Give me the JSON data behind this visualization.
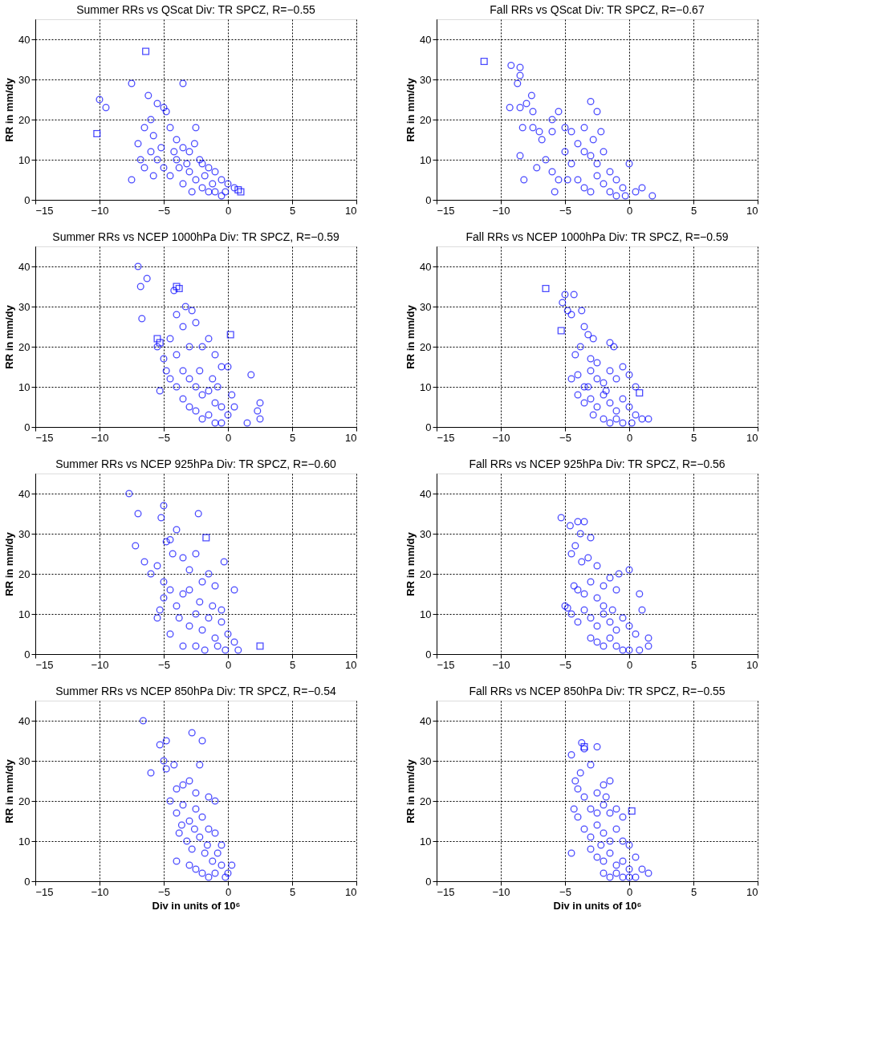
{
  "chart_data": [
    {
      "type": "scatter",
      "title": "Summer RRs vs QScat Div: TR SPCZ, R=−0.55",
      "ylabel": "RR in mm/dy",
      "xlim": [
        -15,
        10
      ],
      "xticks": [
        -15,
        -10,
        -5,
        0,
        5,
        10
      ],
      "ylim": [
        0,
        45
      ],
      "yticks": [
        0,
        10,
        20,
        30,
        40
      ],
      "grid": true,
      "series": [
        {
          "color": "#0000ff",
          "marker": "circle",
          "x": [
            -10,
            -9.5,
            -7.5,
            -3.5,
            -6.2,
            -5.5,
            -5,
            -4.8,
            -6,
            -7,
            -6.5,
            -5.8,
            -4.5,
            -4,
            -3.5,
            -3,
            -2.5,
            -2.2,
            -2,
            -1.5,
            -1,
            -0.5,
            0,
            0.5,
            -7.5,
            -5.5,
            -5,
            -4.5,
            -4,
            -3.5,
            -3,
            -2.8,
            -2.5,
            -2,
            -1.5,
            -0.5,
            -6,
            -6.8,
            -5.2,
            -4.2,
            -3.8,
            -3.2,
            -2.6,
            -1.8,
            -1.2,
            -1,
            -0.2,
            -5.8,
            -6.5
          ],
          "values": [
            25,
            23,
            29,
            29,
            26,
            24,
            23,
            22,
            20,
            14,
            18,
            16,
            18,
            15,
            13,
            12,
            18,
            10,
            9,
            8,
            7,
            5,
            4,
            3,
            5,
            10,
            8,
            6,
            10,
            4,
            7,
            2,
            5,
            3,
            2,
            1,
            12,
            10,
            13,
            12,
            8,
            9,
            14,
            6,
            4,
            2,
            2,
            6,
            8
          ]
        },
        {
          "color": "#0000ff",
          "marker": "square",
          "x": [
            -10.2,
            -6.4,
            1,
            0.8
          ],
          "values": [
            16.5,
            37,
            2,
            2.5
          ]
        }
      ]
    },
    {
      "type": "scatter",
      "title": "Fall RRs vs QScat Div: TR SPCZ, R=−0.67",
      "ylabel": "RR in mm/dy",
      "xlim": [
        -15,
        10
      ],
      "xticks": [
        -15,
        -10,
        -5,
        0,
        5,
        10
      ],
      "ylim": [
        0,
        45
      ],
      "yticks": [
        0,
        10,
        20,
        30,
        40
      ],
      "grid": true,
      "series": [
        {
          "color": "#0000ff",
          "marker": "circle",
          "x": [
            -9.2,
            -8.5,
            -8.5,
            -8.7,
            -9.3,
            -8.5,
            -7.6,
            -8,
            -7.5,
            -8.3,
            -7.5,
            -7,
            -6.8,
            -6,
            -6,
            -5.5,
            -5,
            -4.5,
            -3.5,
            -3,
            -2.5,
            -2.2,
            -8.5,
            -8.2,
            -7.2,
            -6.5,
            -6,
            -5.5,
            -5.8,
            -5,
            -4.5,
            -4,
            -3.5,
            -3,
            -2.5,
            -2,
            -1.5,
            -1,
            -0.5,
            0,
            0.5,
            1,
            1.8,
            -4,
            -3.5,
            -3,
            -2.5,
            -2,
            -1.5,
            -1,
            -0.3,
            -2.8,
            -4.8
          ],
          "values": [
            33.5,
            33,
            31,
            29,
            23,
            23,
            26,
            24,
            22,
            18,
            18,
            17,
            15,
            17,
            20,
            22,
            18,
            17,
            18,
            24.5,
            22,
            17,
            11,
            5,
            8,
            10,
            7,
            5,
            2,
            12,
            9,
            14,
            12,
            11,
            9,
            12,
            7,
            5,
            3,
            9,
            2,
            3,
            1,
            5,
            3,
            2,
            6,
            4,
            2,
            1,
            1,
            15,
            5
          ]
        },
        {
          "color": "#0000ff",
          "marker": "square",
          "x": [
            -11.3
          ],
          "values": [
            34.5
          ]
        }
      ]
    },
    {
      "type": "scatter",
      "title": "Summer RRs vs NCEP 1000hPa Div: TR SPCZ, R=−0.59",
      "ylabel": "RR in mm/dy",
      "xlim": [
        -15,
        10
      ],
      "xticks": [
        -15,
        -10,
        -5,
        0,
        5,
        10
      ],
      "ylim": [
        0,
        45
      ],
      "yticks": [
        0,
        10,
        20,
        30,
        40
      ],
      "grid": true,
      "series": [
        {
          "color": "#0000ff",
          "marker": "circle",
          "x": [
            -7,
            -6.8,
            -6.3,
            -6.7,
            -4.2,
            -3.3,
            -2.8,
            -4,
            -3.5,
            -2.5,
            -1.5,
            -4.5,
            -5.5,
            -5,
            -4,
            -3,
            -2,
            -1,
            -0.5,
            0,
            1.8,
            -5.3,
            -4.5,
            -4,
            -3.5,
            -3,
            -2.5,
            -2,
            -1.5,
            -1,
            -0.5,
            0,
            0.5,
            2.5,
            2.3,
            2.5,
            1.5,
            -3,
            -2.5,
            -2,
            -1.5,
            -1,
            -0.5,
            -3.5,
            -2.2,
            -1.2,
            -0.8,
            0.3,
            -4.8
          ],
          "values": [
            40,
            35,
            37,
            27,
            34,
            30,
            29,
            28,
            25,
            26,
            22,
            22,
            20,
            17,
            18,
            20,
            20,
            18,
            15,
            15,
            13,
            9,
            12,
            10,
            14,
            12,
            10,
            8,
            9,
            6,
            5,
            3,
            5,
            6,
            4,
            2,
            1,
            5,
            4,
            2,
            3,
            1,
            1,
            7,
            14,
            12,
            10,
            8,
            14
          ]
        },
        {
          "color": "#0000ff",
          "marker": "square",
          "x": [
            -4,
            -5.5,
            -5.3,
            0.2,
            -3.8
          ],
          "values": [
            35,
            22,
            21,
            23,
            34.5
          ]
        }
      ]
    },
    {
      "type": "scatter",
      "title": "Fall RRs vs NCEP 1000hPa Div: TR SPCZ, R=−0.59",
      "ylabel": "RR in mm/dy",
      "xlim": [
        -15,
        10
      ],
      "xticks": [
        -15,
        -10,
        -5,
        0,
        5,
        10
      ],
      "ylim": [
        0,
        45
      ],
      "yticks": [
        0,
        10,
        20,
        30,
        40
      ],
      "grid": true,
      "series": [
        {
          "color": "#0000ff",
          "marker": "circle",
          "x": [
            -5,
            -4.3,
            -5.2,
            -4.8,
            -4.5,
            -3.7,
            -3.5,
            -3.2,
            -2.8,
            -4.2,
            -3.8,
            -3,
            -2.5,
            -1.5,
            -1.2,
            -0.5,
            -4.5,
            -4,
            -3.5,
            -3,
            -2.5,
            -2,
            -1.5,
            -1,
            0,
            0.5,
            -4,
            -3.5,
            -3,
            -2.5,
            -2,
            -1.5,
            -1,
            -0.5,
            0,
            0.5,
            1,
            1.5,
            -2,
            -1.5,
            -1,
            -0.5,
            0.2,
            -2.8,
            -3.2,
            -1.8
          ],
          "values": [
            33,
            33,
            31,
            29,
            28,
            29,
            25,
            23,
            22,
            18,
            20,
            17,
            16,
            21,
            20,
            15,
            12,
            13,
            10,
            14,
            12,
            11,
            14,
            12,
            13,
            10,
            8,
            6,
            7,
            5,
            8,
            6,
            4,
            7,
            5,
            3,
            2,
            2,
            2,
            1,
            2,
            1,
            1,
            3,
            10,
            9
          ]
        },
        {
          "color": "#0000ff",
          "marker": "square",
          "x": [
            -6.5,
            -5.3,
            0.8
          ],
          "values": [
            34.5,
            24,
            8.5
          ]
        }
      ]
    },
    {
      "type": "scatter",
      "title": "Summer RRs vs NCEP 925hPa Div: TR SPCZ, R=−0.60",
      "ylabel": "RR in mm/dy",
      "xlim": [
        -15,
        10
      ],
      "xticks": [
        -15,
        -10,
        -5,
        0,
        5,
        10
      ],
      "ylim": [
        0,
        45
      ],
      "yticks": [
        0,
        10,
        20,
        30,
        40
      ],
      "grid": true,
      "series": [
        {
          "color": "#0000ff",
          "marker": "circle",
          "x": [
            -7.7,
            -7,
            -7.2,
            -5,
            -5.2,
            -2.3,
            -4,
            -4.8,
            -4.5,
            -6.5,
            -6,
            -5.5,
            -5,
            -4.3,
            -3.5,
            -2.5,
            -3,
            -0.3,
            -5.5,
            -5.3,
            -5,
            -4.5,
            -4,
            -3.5,
            -3,
            -2,
            -1.5,
            -1,
            0.5,
            -4.5,
            -3.5,
            -3,
            -2.5,
            -2,
            -1.5,
            -1,
            -0.5,
            0,
            0.5,
            0.8,
            -2.5,
            -1.8,
            -0.8,
            -0.2,
            -1.2,
            -0.5,
            -2.2,
            -3.8
          ],
          "values": [
            40,
            35,
            27,
            37,
            34,
            35,
            31,
            28,
            28.5,
            23,
            20,
            22,
            18,
            25,
            24,
            25,
            21,
            23,
            9,
            11,
            14,
            16,
            12,
            15,
            16,
            18,
            20,
            17,
            16,
            5,
            2,
            7,
            10,
            6,
            9,
            4,
            8,
            5,
            3,
            1,
            2,
            1,
            2,
            1,
            12,
            11,
            13,
            9
          ]
        },
        {
          "color": "#0000ff",
          "marker": "square",
          "x": [
            2.5,
            -1.7
          ],
          "values": [
            2,
            29
          ]
        }
      ]
    },
    {
      "type": "scatter",
      "title": "Fall RRs vs NCEP 925hPa Div: TR SPCZ, R=−0.56",
      "ylabel": "RR in mm/dy",
      "xlim": [
        -15,
        10
      ],
      "xticks": [
        -15,
        -10,
        -5,
        0,
        5,
        10
      ],
      "ylim": [
        0,
        45
      ],
      "yticks": [
        0,
        10,
        20,
        30,
        40
      ],
      "grid": true,
      "series": [
        {
          "color": "#0000ff",
          "marker": "circle",
          "x": [
            -5.3,
            -4.6,
            -4,
            -3.5,
            -3.8,
            -3,
            -4.2,
            -4.5,
            -3.7,
            -3.2,
            -2.5,
            -1.5,
            -0.8,
            0,
            -4.3,
            -4,
            -3.5,
            -3,
            -2.5,
            -2,
            -1,
            0.8,
            1,
            -5,
            -4.5,
            -4.8,
            -4,
            -3.5,
            -3,
            -2.5,
            -2,
            -1.5,
            -1,
            -0.5,
            0,
            0.5,
            1.5,
            1.5,
            -3,
            -2.5,
            -2,
            -1.5,
            -1,
            -0.5,
            0,
            0.8,
            -2,
            -1.3
          ],
          "values": [
            34,
            32,
            33,
            33,
            30,
            29,
            27,
            25,
            23,
            24,
            22,
            19,
            20,
            21,
            17,
            16,
            15,
            18,
            14,
            17,
            16,
            15,
            11,
            12,
            10,
            11.5,
            8,
            11,
            9,
            7,
            10,
            8,
            6,
            9,
            7,
            5,
            4,
            2,
            4,
            3,
            2,
            4,
            2,
            1,
            1,
            1,
            12,
            11
          ]
        }
      ]
    },
    {
      "type": "scatter",
      "title": "Summer RRs vs NCEP 850hPa Div: TR SPCZ, R=−0.54",
      "xlabel": "Div in units of 10⁶",
      "ylabel": "RR in mm/dy",
      "xlim": [
        -15,
        10
      ],
      "xticks": [
        -15,
        -10,
        -5,
        0,
        5,
        10
      ],
      "ylim": [
        0,
        45
      ],
      "yticks": [
        0,
        10,
        20,
        30,
        40
      ],
      "grid": true,
      "series": [
        {
          "color": "#0000ff",
          "marker": "circle",
          "x": [
            -6.6,
            -5.3,
            -4.8,
            -5,
            -6,
            -4.8,
            -4.2,
            -2.8,
            -2,
            -2.2,
            -4,
            -3.5,
            -3,
            -2.5,
            -1.5,
            -1,
            -4.5,
            -4,
            -3.5,
            -3,
            -2.5,
            -2,
            -1.5,
            -1,
            -0.5,
            -3.8,
            -3.2,
            -2.8,
            -2.2,
            -1.8,
            -1.2,
            -0.5,
            0,
            0.3,
            -4,
            -3,
            -2.5,
            -2,
            -1.5,
            -1,
            -0.2,
            -2.6,
            -1.6,
            -0.8,
            -3.6
          ],
          "values": [
            40,
            34,
            35,
            30,
            27,
            28,
            29,
            37,
            35,
            29,
            23,
            24,
            25,
            22,
            21,
            20,
            20,
            17,
            19,
            15,
            18,
            16,
            13,
            12,
            9,
            12,
            10,
            8,
            11,
            7,
            5,
            4,
            2,
            4,
            5,
            4,
            3,
            2,
            1,
            2,
            1,
            13,
            9,
            7,
            14
          ]
        }
      ]
    },
    {
      "type": "scatter",
      "title": "Fall RRs vs NCEP 850hPa Div: TR SPCZ, R=−0.55",
      "xlabel": "Div in units of 10⁶",
      "ylabel": "RR in mm/dy",
      "xlim": [
        -15,
        10
      ],
      "xticks": [
        -15,
        -10,
        -5,
        0,
        5,
        10
      ],
      "ylim": [
        0,
        45
      ],
      "yticks": [
        0,
        10,
        20,
        30,
        40
      ],
      "grid": true,
      "series": [
        {
          "color": "#0000ff",
          "marker": "circle",
          "x": [
            -4.5,
            -3.7,
            -3.5,
            -2.5,
            -3,
            -3.8,
            -4.2,
            -4,
            -3.5,
            -2,
            -1.5,
            -2.5,
            -1.8,
            -4.3,
            -4,
            -3,
            -2.5,
            -2,
            -1.5,
            -1,
            -0.5,
            -3.5,
            -3,
            -2.5,
            -2,
            -1.5,
            -1,
            -0.5,
            0,
            0.5,
            -4.5,
            -3,
            -2.5,
            -2,
            -1.5,
            -1,
            -0.5,
            0,
            0.5,
            1,
            1.5,
            -2,
            -1.5,
            -1,
            -0.5,
            0,
            -2.2
          ],
          "values": [
            31.5,
            34.5,
            33,
            33.5,
            29,
            27,
            25,
            23,
            21,
            24,
            25,
            22,
            21,
            18,
            16,
            18,
            17,
            19,
            17,
            18,
            16,
            13,
            11,
            14,
            12,
            10,
            13,
            10,
            9,
            6,
            7,
            8,
            6,
            5,
            7,
            4,
            5,
            3,
            1,
            3,
            2,
            2,
            1,
            2,
            1,
            1,
            9
          ]
        },
        {
          "color": "#0000ff",
          "marker": "square",
          "x": [
            0.2,
            -3.5
          ],
          "values": [
            17.5,
            33.5
          ]
        }
      ]
    }
  ]
}
